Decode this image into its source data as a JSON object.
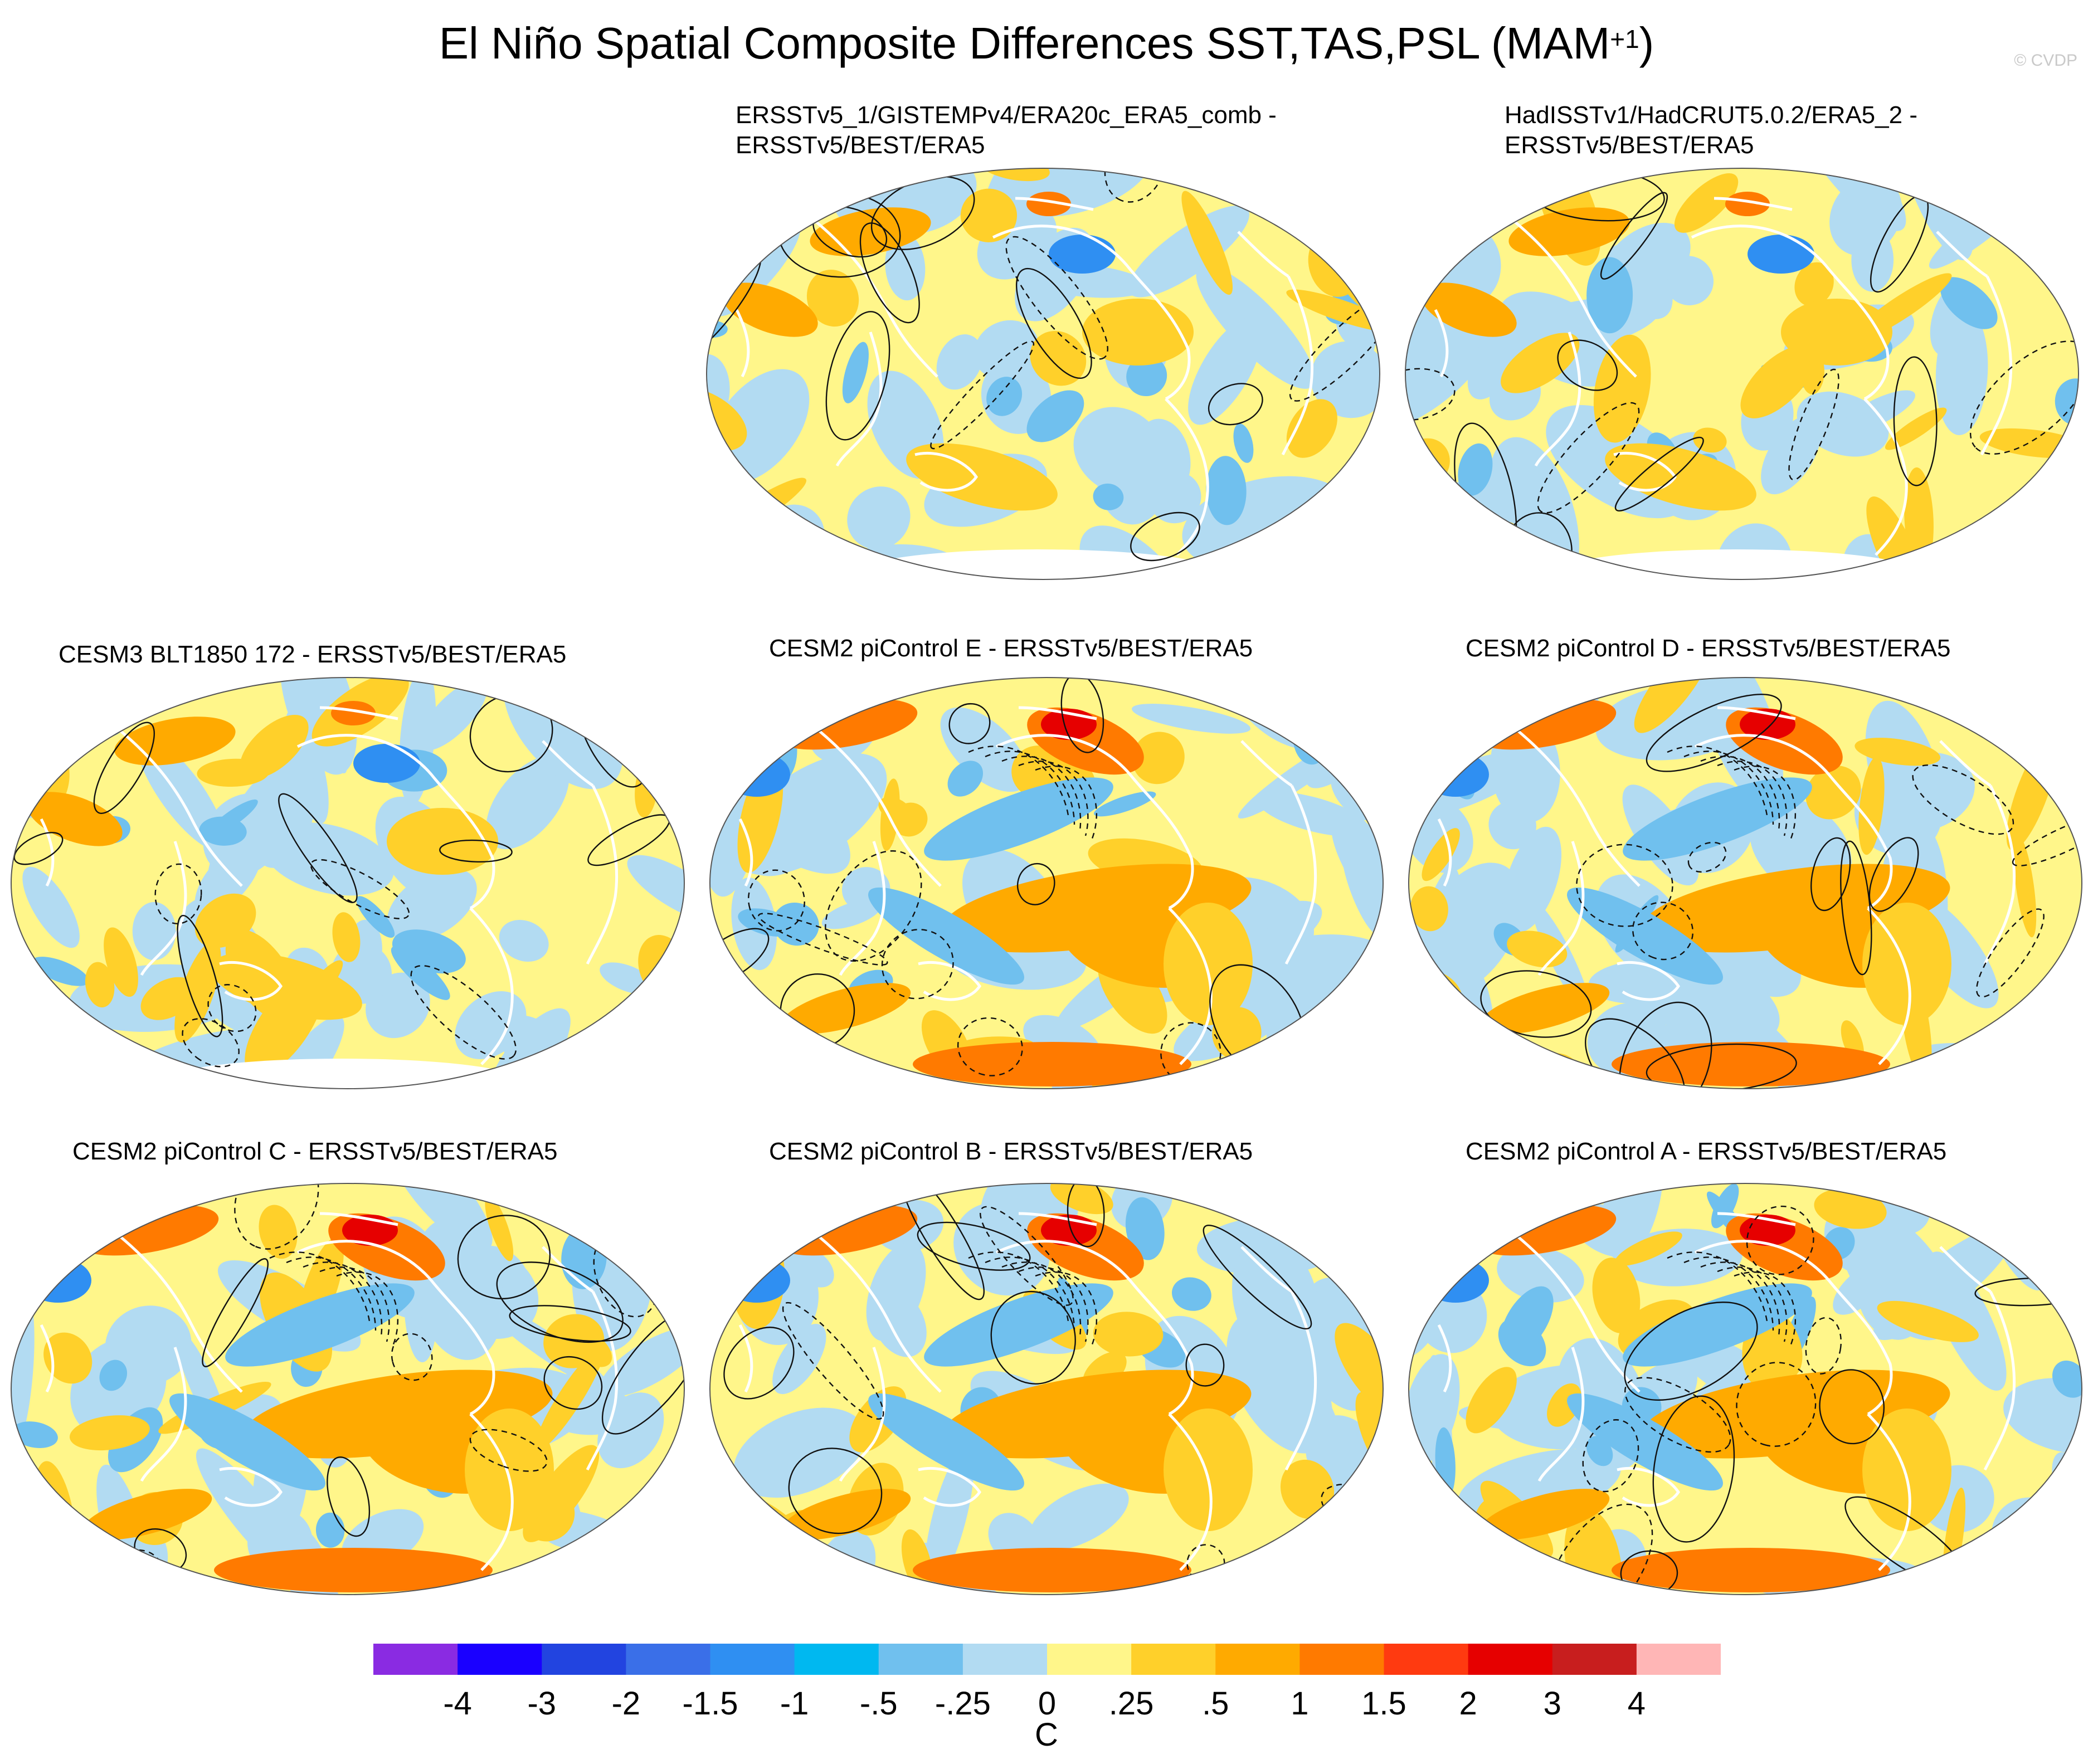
{
  "title": {
    "main": "El Niño Spatial Composite Differences SST,TAS,PSL (MAM",
    "superscript": "+1",
    "close": ")"
  },
  "credit": "© CVDP",
  "panels": [
    {
      "id": "p1",
      "line1": "ERSSTv5_1/GISTEMPv4/ERA20c_ERA5_comb -",
      "line2": "ERSSTv5/BEST/ERA5",
      "tone": "mixed"
    },
    {
      "id": "p2",
      "line1": "HadISSTv1/HadCRUT5.0.2/ERA5_2 -",
      "line2": "ERSSTv5/BEST/ERA5",
      "tone": "mixed"
    },
    {
      "id": "p3",
      "line1": "CESM3 BLT1850 172 - ERSSTv5/BEST/ERA5",
      "line2": "",
      "tone": "mixed"
    },
    {
      "id": "p4",
      "line1": "CESM2 piControl E - ERSSTv5/BEST/ERA5",
      "line2": "",
      "tone": "warm"
    },
    {
      "id": "p5",
      "line1": "CESM2 piControl D - ERSSTv5/BEST/ERA5",
      "line2": "",
      "tone": "warm"
    },
    {
      "id": "p6",
      "line1": "CESM2 piControl C - ERSSTv5/BEST/ERA5",
      "line2": "",
      "tone": "warm"
    },
    {
      "id": "p7",
      "line1": "CESM2 piControl B - ERSSTv5/BEST/ERA5",
      "line2": "",
      "tone": "warm"
    },
    {
      "id": "p8",
      "line1": "CESM2 piControl A - ERSSTv5/BEST/ERA5",
      "line2": "",
      "tone": "warm"
    }
  ],
  "colorbar": {
    "unit": "C",
    "labels": [
      "-4",
      "-3",
      "-2",
      "-1.5",
      "-1",
      "-.5",
      "-.25",
      "0",
      ".25",
      ".5",
      "1",
      "1.5",
      "2",
      "3",
      "4"
    ],
    "colors": [
      "#8a2be2",
      "#1a00ff",
      "#2244e0",
      "#3a6fe8",
      "#2f8ff2",
      "#00b8f0",
      "#70c0ee",
      "#b2dbf2",
      "#fff68a",
      "#ffd02a",
      "#ffaa00",
      "#ff7a00",
      "#ff3a10",
      "#e60000",
      "#c81e1e",
      "#ffb6b6"
    ]
  }
}
